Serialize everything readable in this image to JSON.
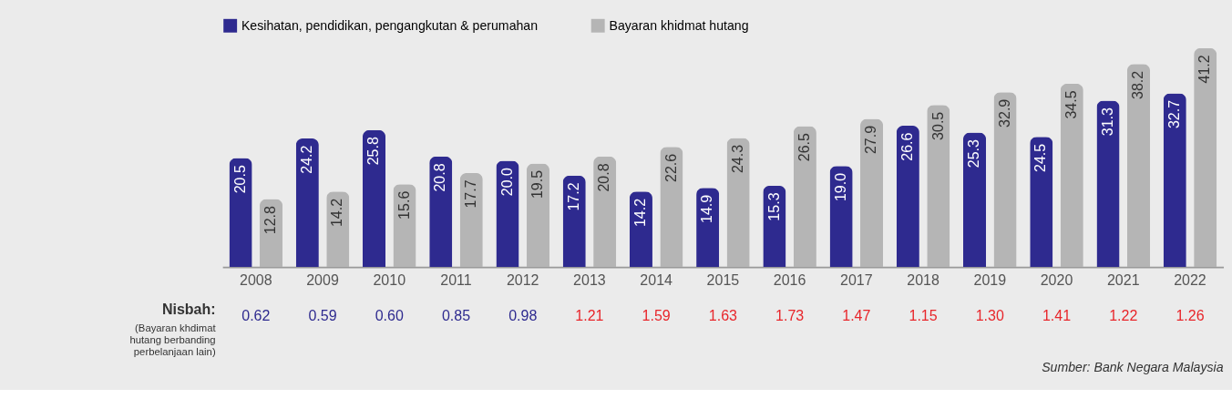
{
  "chart_data": {
    "type": "bar",
    "categories": [
      "2008",
      "2009",
      "2010",
      "2011",
      "2012",
      "2013",
      "2014",
      "2015",
      "2016",
      "2017",
      "2018",
      "2019",
      "2020",
      "2021",
      "2022"
    ],
    "series": [
      {
        "name": "Kesihatan, pendidikan, pengangkutan & perumahan",
        "color": "#2e2a8f",
        "values": [
          20.5,
          24.2,
          25.8,
          20.8,
          20.0,
          17.2,
          14.2,
          14.9,
          15.3,
          19.0,
          26.6,
          25.3,
          24.5,
          31.3,
          32.7
        ],
        "value_labels": [
          "20.5",
          "24.2",
          "25.8",
          "20.8",
          "20.0",
          "17.2",
          "14.2",
          "14.9",
          "15.3",
          "19.0",
          "26.6",
          "25.3",
          "24.5",
          "31.3",
          "32.7"
        ]
      },
      {
        "name": "Bayaran khidmat hutang",
        "color": "#b5b5b5",
        "values": [
          12.8,
          14.2,
          15.6,
          17.7,
          19.5,
          20.8,
          22.6,
          24.3,
          26.5,
          27.9,
          30.5,
          32.9,
          34.5,
          38.2,
          41.2
        ],
        "value_labels": [
          "12.8",
          "14.2",
          "15.6",
          "17.7",
          "19.5",
          "20.8",
          "22.6",
          "24.3",
          "26.5",
          "27.9",
          "30.5",
          "32.9",
          "34.5",
          "38.2",
          "41.2"
        ]
      }
    ],
    "tick_labels": "x",
    "grid": false,
    "legend": "top",
    "annotations": [
      "Nisbah:",
      "(Bayaran khdimat\nhutang berbanding\nperbelanjaan lain)",
      "Sumber: Bank Negara Malaysia",
      "0.62",
      "0.59",
      "0.60",
      "0.85",
      "0.98",
      "1.21",
      "1.59",
      "1.63",
      "1.73",
      "1.47",
      "1.15",
      "1.30",
      "1.41",
      "1.22",
      "1.26"
    ]
  }
}
